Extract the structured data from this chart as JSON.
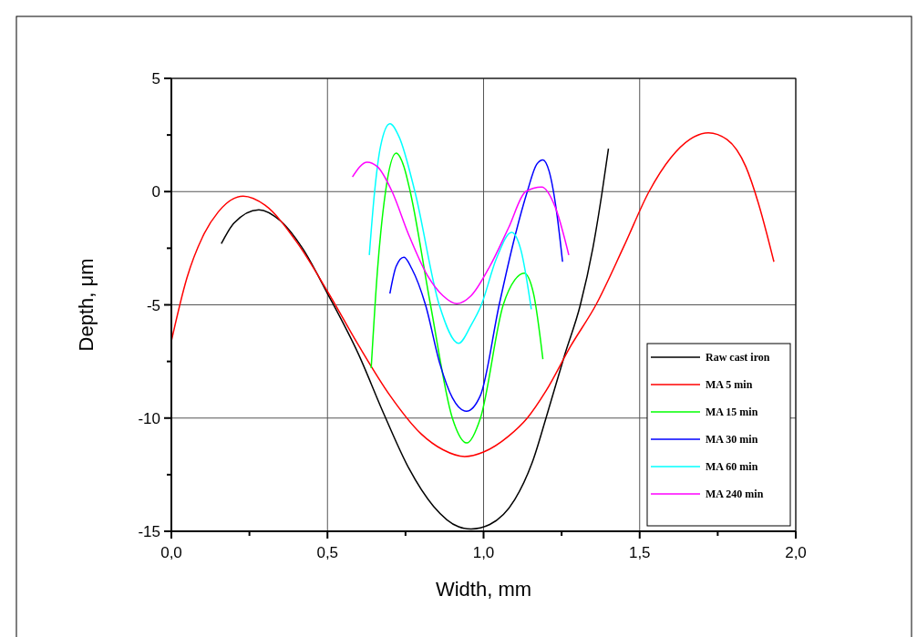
{
  "chart_data": {
    "type": "line",
    "xlabel": "Width, mm",
    "ylabel": "Depth, μm",
    "xlim": [
      0,
      2
    ],
    "ylim": [
      -15,
      5
    ],
    "xticks": [
      {
        "value": 0,
        "label": "0,0"
      },
      {
        "value": 0.25,
        "label": null
      },
      {
        "value": 0.5,
        "label": "0,5"
      },
      {
        "value": 0.75,
        "label": null
      },
      {
        "value": 1,
        "label": "1,0"
      },
      {
        "value": 1.25,
        "label": null
      },
      {
        "value": 1.5,
        "label": "1,5"
      },
      {
        "value": 1.75,
        "label": null
      },
      {
        "value": 2,
        "label": "2,0"
      }
    ],
    "yticks": [
      -15,
      {
        "value": -12.5,
        "label": null
      },
      -10,
      {
        "value": -7.5,
        "label": null
      },
      -5,
      {
        "value": -2.5,
        "label": null
      },
      0,
      {
        "value": 2.5,
        "label": null
      },
      5
    ],
    "grid": true,
    "legend": "bottom right",
    "marker": "none",
    "line_style": "solid",
    "series": [
      {
        "name": "Raw cast iron",
        "color": "#000000",
        "x": [
          0.16,
          0.2,
          0.28,
          0.35,
          0.42,
          0.5,
          0.6,
          0.68,
          0.76,
          0.84,
          0.92,
          0.96,
          1.02,
          1.1,
          1.16,
          1.2,
          1.26,
          1.31,
          1.35,
          1.38,
          1.4
        ],
        "values": [
          -2.3,
          -1.4,
          -0.8,
          -1.3,
          -2.5,
          -4.5,
          -7.2,
          -9.8,
          -12.2,
          -13.9,
          -14.8,
          -14.9,
          -14.7,
          -13.6,
          -11.8,
          -10,
          -7.2,
          -5,
          -2.5,
          0,
          1.9
        ]
      },
      {
        "name": "MA 5 min",
        "color": "#ff0000",
        "x": [
          0,
          0.05,
          0.1,
          0.15,
          0.23,
          0.3,
          0.4,
          0.5,
          0.6,
          0.7,
          0.8,
          0.87,
          0.94,
          1.0,
          1.08,
          1.14,
          1.2,
          1.28,
          1.36,
          1.45,
          1.53,
          1.6,
          1.66,
          1.72,
          1.78,
          1.84,
          1.88,
          1.93
        ],
        "values": [
          -6.6,
          -3.8,
          -2,
          -0.9,
          -0.2,
          -0.6,
          -2.2,
          -4.4,
          -6.8,
          -9,
          -10.7,
          -11.4,
          -11.7,
          -11.5,
          -10.8,
          -10,
          -8.8,
          -6.8,
          -5,
          -2.4,
          0,
          1.5,
          2.3,
          2.6,
          2.3,
          1.1,
          -0.5,
          -3.1
        ]
      },
      {
        "name": "MA 15 min",
        "color": "#00ff00",
        "x": [
          0.64,
          0.66,
          0.686,
          0.72,
          0.745,
          0.765,
          0.83,
          0.9,
          0.946,
          0.99,
          1.063,
          1.1,
          1.13,
          1.16,
          1.19
        ],
        "values": [
          -7.8,
          -3.5,
          0,
          1.7,
          1.1,
          0,
          -5,
          -10,
          -11.1,
          -10,
          -5,
          -3.9,
          -3.6,
          -4.5,
          -7.4
        ]
      },
      {
        "name": "MA 30 min",
        "color": "#0000ff",
        "x": [
          0.7,
          0.72,
          0.745,
          0.77,
          0.814,
          0.86,
          0.9,
          0.945,
          0.99,
          1.05,
          1.1,
          1.14,
          1.17,
          1.19,
          1.21,
          1.235,
          1.253
        ],
        "values": [
          -4.5,
          -3.3,
          -2.9,
          -3.4,
          -5,
          -7.6,
          -9.1,
          -9.7,
          -9,
          -5,
          -2,
          0,
          1.2,
          1.4,
          0.9,
          -1,
          -3.1
        ]
      },
      {
        "name": "MA 60 min",
        "color": "#00ffff",
        "x": [
          0.634,
          0.651,
          0.67,
          0.7,
          0.73,
          0.78,
          0.858,
          0.92,
          0.96,
          0.993,
          1.04,
          1.09,
          1.12,
          1.153
        ],
        "values": [
          -2.8,
          0,
          2,
          3.0,
          2.4,
          0,
          -5,
          -6.7,
          -5.9,
          -5,
          -3,
          -1.8,
          -2.6,
          -5.2
        ]
      },
      {
        "name": "MA 240 min",
        "color": "#ff00ff",
        "x": [
          0.58,
          0.627,
          0.66,
          0.707,
          0.76,
          0.82,
          0.87,
          0.914,
          0.96,
          1.02,
          1.08,
          1.135,
          1.186,
          1.23,
          1.273
        ],
        "values": [
          0.65,
          1.3,
          1.1,
          0,
          -1.9,
          -3.7,
          -4.6,
          -4.95,
          -4.6,
          -3.3,
          -1.6,
          0,
          0.2,
          -0.7,
          -2.8
        ]
      }
    ]
  }
}
